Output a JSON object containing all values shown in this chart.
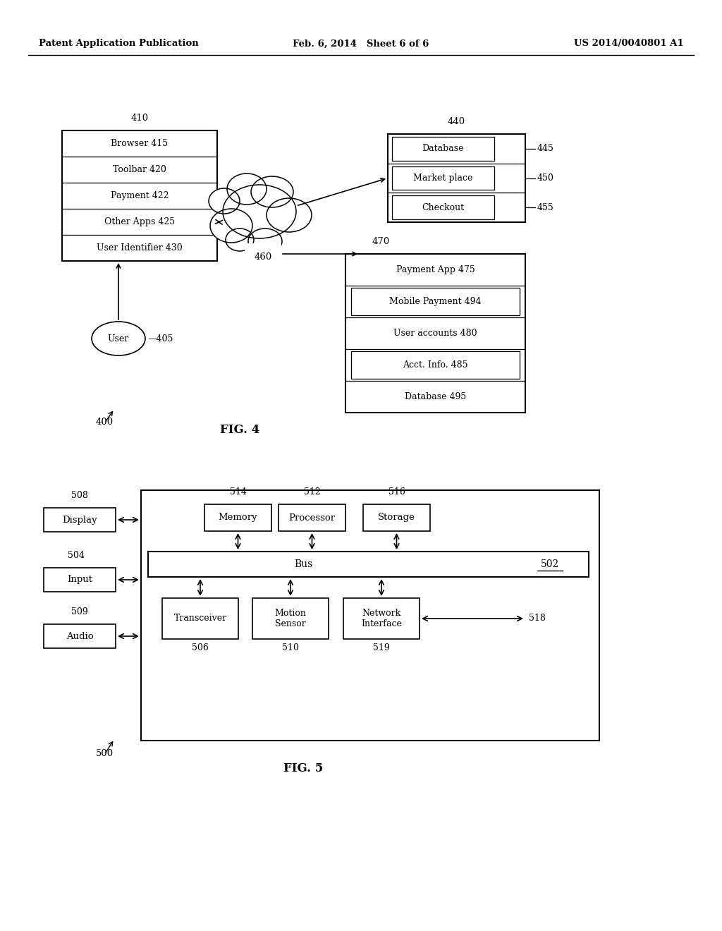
{
  "header": {
    "left": "Patent Application Publication",
    "center": "Feb. 6, 2014   Sheet 6 of 6",
    "right": "US 2014/0040801 A1"
  },
  "fig4": {
    "label": "FIG. 4",
    "fig_number": "400",
    "box410": {
      "label": "410",
      "rows": [
        {
          "text": "Browser 415"
        },
        {
          "text": "Toolbar 420"
        },
        {
          "text": "Payment 422"
        },
        {
          "text": "Other Apps 425"
        },
        {
          "text": "User Identifier 430"
        }
      ]
    },
    "box440": {
      "label": "440",
      "rows": [
        {
          "text": "Database",
          "ref": "445"
        },
        {
          "text": "Market place",
          "ref": "450"
        },
        {
          "text": "Checkout",
          "ref": "455"
        }
      ]
    },
    "box470": {
      "label": "470",
      "rows": [
        {
          "text": "Payment App 475"
        },
        {
          "text": "Mobile Payment 494"
        },
        {
          "text": "User accounts 480"
        },
        {
          "text": "Acct. Info. 485"
        },
        {
          "text": "Database 495"
        }
      ]
    },
    "cloud460_label": "460",
    "user_label": "User",
    "user_ref": "405"
  },
  "fig5": {
    "label": "FIG. 5",
    "fig_number": "500",
    "outer_box_ref": "502",
    "display": {
      "text": "Display",
      "ref": "508"
    },
    "input_box": {
      "text": "Input",
      "ref": "504"
    },
    "audio": {
      "text": "Audio",
      "ref": "509"
    },
    "memory": {
      "text": "Memory",
      "ref": "514"
    },
    "processor": {
      "text": "Processor",
      "ref": "512"
    },
    "storage": {
      "text": "Storage",
      "ref": "516"
    },
    "bus": {
      "text": "Bus",
      "ref": "502"
    },
    "transceiver": {
      "text": "Transceiver",
      "ref": "506"
    },
    "motion_sensor": {
      "text": "Motion\nSensor",
      "ref": "510"
    },
    "network_interface": {
      "text": "Network\nInterface",
      "ref": "519"
    },
    "network_arrow_ref": "518"
  }
}
